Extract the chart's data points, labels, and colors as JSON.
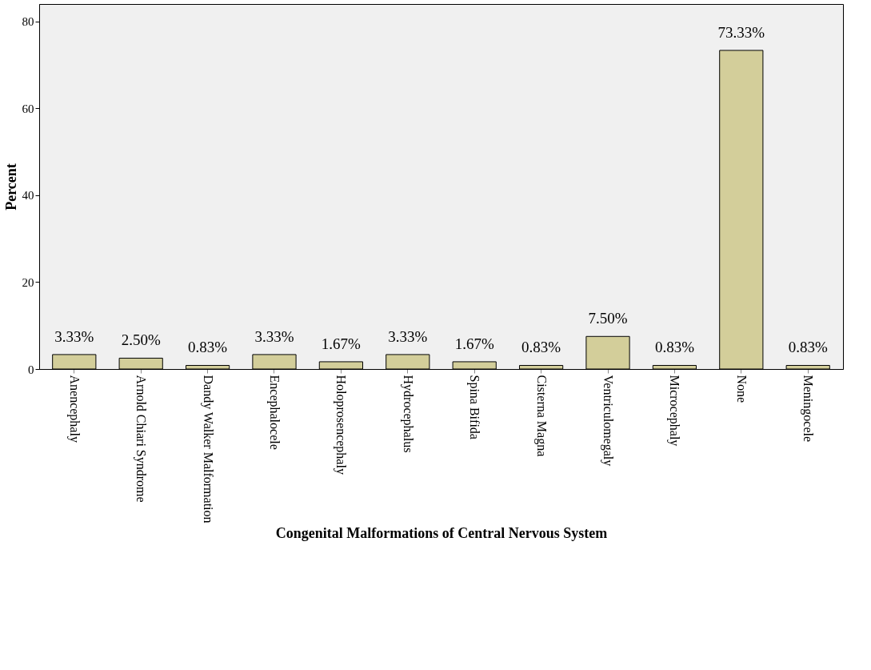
{
  "chart_data": {
    "type": "bar",
    "xlabel": "Congenital Malformations of Central Nervous System",
    "ylabel": "Percent",
    "categories": [
      "Anencephaly",
      "Arnold Chiari Syndrome",
      "Dandy Walker Malformation",
      "Encephalocele",
      "Holoprosencephaly",
      "Hydrocephalus",
      "Spina Bifida",
      "Cisterna Magna",
      "Ventriculomegaly",
      "Microcephaly",
      "None",
      "Meningocele"
    ],
    "values": [
      3.33,
      2.5,
      0.83,
      3.33,
      1.67,
      3.33,
      1.67,
      0.83,
      7.5,
      0.83,
      73.33,
      0.83
    ],
    "value_labels": [
      "3.33%",
      "2.50%",
      "0.83%",
      "3.33%",
      "1.67%",
      "3.33%",
      "1.67%",
      "0.83%",
      "7.50%",
      "0.83%",
      "73.33%",
      "0.83%"
    ],
    "color": "#d3ce9a",
    "ylim": [
      0,
      84
    ],
    "yticks": [
      0,
      20,
      40,
      60,
      80
    ],
    "grid": false
  }
}
